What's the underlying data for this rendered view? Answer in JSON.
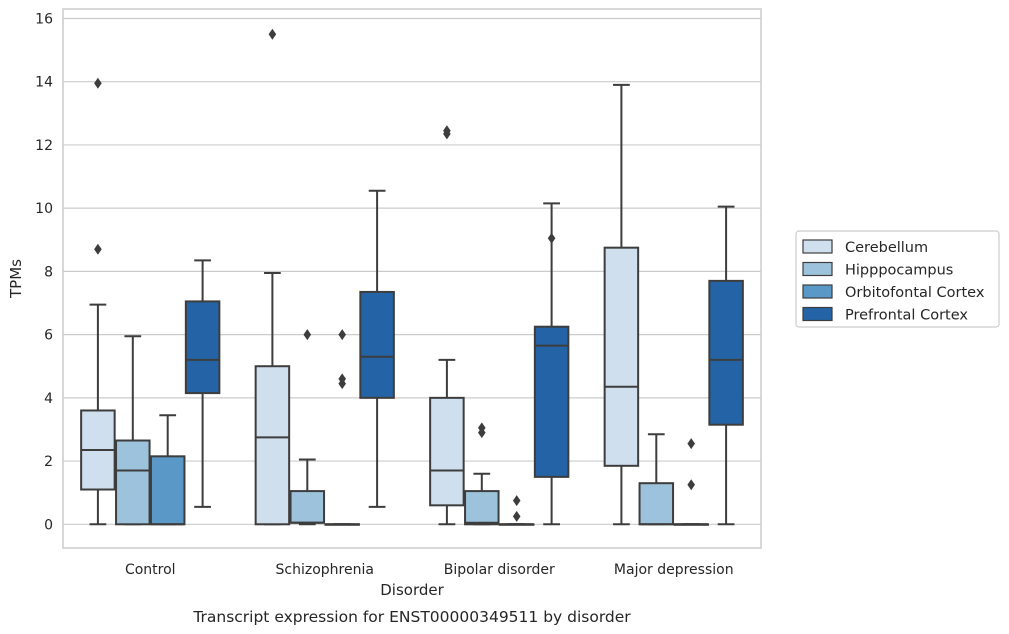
{
  "chart_data": {
    "type": "boxplot",
    "title": "",
    "caption": "Transcript expression for ENST00000349511 by disorder",
    "xlabel": "Disorder",
    "ylabel": "TPMs",
    "ylim": [
      -0.75,
      16.3
    ],
    "yticks": [
      0,
      2,
      4,
      6,
      8,
      10,
      12,
      14,
      16
    ],
    "grid": "horizontal",
    "legend_position": "right",
    "categories": [
      "Control",
      "Schizophrenia",
      "Bipolar disorder",
      "Major depression"
    ],
    "series": [
      {
        "name": "Cerebellum",
        "color": "#d0dfee",
        "boxes": [
          {
            "q1": 1.1,
            "median": 2.35,
            "q3": 3.6,
            "low": 0.0,
            "high": 6.95,
            "outliers": [
              8.7,
              13.95
            ]
          },
          {
            "q1": 0.0,
            "median": 2.75,
            "q3": 5.0,
            "low": 0.0,
            "high": 7.95,
            "outliers": [
              15.5
            ]
          },
          {
            "q1": 0.6,
            "median": 1.7,
            "q3": 4.0,
            "low": 0.0,
            "high": 5.2,
            "outliers": [
              12.35,
              12.45
            ]
          },
          {
            "q1": 1.85,
            "median": 4.35,
            "q3": 8.75,
            "low": 0.0,
            "high": 13.9,
            "outliers": []
          }
        ]
      },
      {
        "name": "Hipppocampus",
        "color": "#9dc3dc",
        "boxes": [
          {
            "q1": 0.0,
            "median": 1.7,
            "q3": 2.65,
            "low": 0.0,
            "high": 5.95,
            "outliers": []
          },
          {
            "q1": 0.05,
            "median": 0.05,
            "q3": 1.05,
            "low": 0.0,
            "high": 2.05,
            "outliers": [
              6.0
            ]
          },
          {
            "q1": 0.0,
            "median": 0.05,
            "q3": 1.05,
            "low": 0.0,
            "high": 1.6,
            "outliers": [
              2.9,
              3.05
            ]
          },
          {
            "q1": 0.0,
            "median": 0.0,
            "q3": 1.3,
            "low": 0.0,
            "high": 2.85,
            "outliers": []
          }
        ]
      },
      {
        "name": "Orbitofontal Cortex",
        "color": "#5998c7",
        "boxes": [
          {
            "q1": 0.0,
            "median": 0.0,
            "q3": 2.15,
            "low": 0.0,
            "high": 3.45,
            "outliers": []
          },
          {
            "q1": 0.0,
            "median": 0.0,
            "q3": 0.0,
            "low": 0.0,
            "high": 0.0,
            "outliers": [
              4.45,
              4.6,
              6.0
            ]
          },
          {
            "q1": 0.0,
            "median": 0.0,
            "q3": 0.0,
            "low": 0.0,
            "high": 0.0,
            "outliers": [
              0.25,
              0.75
            ]
          },
          {
            "q1": 0.0,
            "median": 0.0,
            "q3": 0.0,
            "low": 0.0,
            "high": 0.0,
            "outliers": [
              1.25,
              2.55
            ]
          }
        ]
      },
      {
        "name": "Prefrontal Cortex",
        "color": "#2464a6",
        "boxes": [
          {
            "q1": 4.15,
            "median": 5.2,
            "q3": 7.05,
            "low": 0.55,
            "high": 8.35,
            "outliers": []
          },
          {
            "q1": 4.0,
            "median": 5.3,
            "q3": 7.35,
            "low": 0.55,
            "high": 10.55,
            "outliers": []
          },
          {
            "q1": 1.5,
            "median": 5.65,
            "q3": 6.25,
            "low": 0.0,
            "high": 10.15,
            "outliers": [
              9.05
            ]
          },
          {
            "q1": 3.15,
            "median": 5.2,
            "q3": 7.7,
            "low": 0.0,
            "high": 10.05,
            "outliers": []
          }
        ]
      }
    ]
  }
}
